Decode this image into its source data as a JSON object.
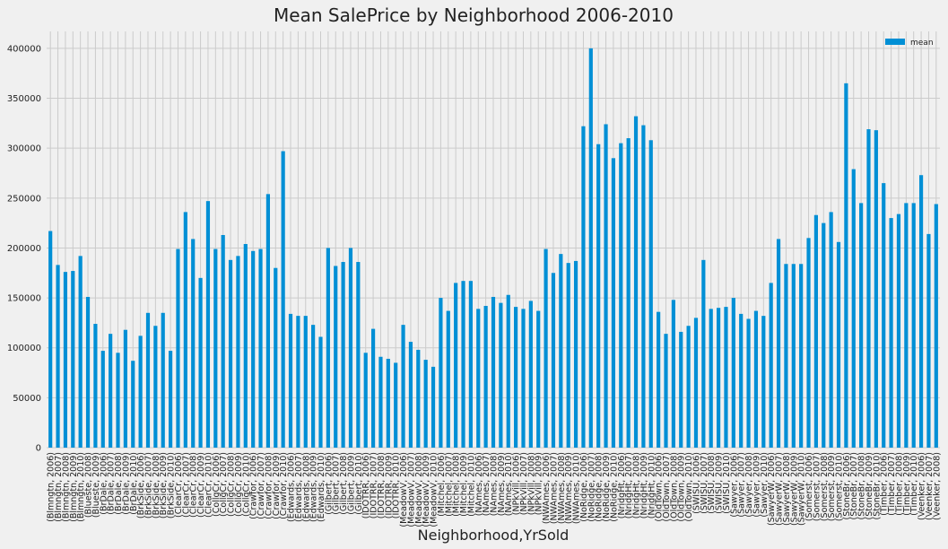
{
  "chart_data": {
    "type": "bar",
    "title": "Mean SalePrice by Neighborhood 2006-2010",
    "x_label": "Neighborhood,YrSold",
    "categories": [
      "(Blmngtn, 2006)",
      "(Blmngtn, 2007)",
      "(Blmngtn, 2008)",
      "(Blmngtn, 2009)",
      "(Blmngtn, 2010)",
      "(Blueste, 2008)",
      "(Blueste, 2009)",
      "(BrDale, 2006)",
      "(BrDale, 2007)",
      "(BrDale, 2008)",
      "(BrDale, 2009)",
      "(BrDale, 2010)",
      "(BrkSide, 2006)",
      "(BrkSide, 2007)",
      "(BrkSide, 2008)",
      "(BrkSide, 2009)",
      "(BrkSide, 2010)",
      "(ClearCr, 2006)",
      "(ClearCr, 2007)",
      "(ClearCr, 2008)",
      "(ClearCr, 2009)",
      "(ClearCr, 2010)",
      "(CollgCr, 2006)",
      "(CollgCr, 2007)",
      "(CollgCr, 2008)",
      "(CollgCr, 2009)",
      "(CollgCr, 2010)",
      "(Crawfor, 2006)",
      "(Crawfor, 2007)",
      "(Crawfor, 2008)",
      "(Crawfor, 2009)",
      "(Crawfor, 2010)",
      "(Edwards, 2006)",
      "(Edwards, 2007)",
      "(Edwards, 2008)",
      "(Edwards, 2009)",
      "(Edwards, 2010)",
      "(Gilbert, 2006)",
      "(Gilbert, 2007)",
      "(Gilbert, 2008)",
      "(Gilbert, 2009)",
      "(Gilbert, 2010)",
      "(IDOTRR, 2006)",
      "(IDOTRR, 2007)",
      "(IDOTRR, 2008)",
      "(IDOTRR, 2009)",
      "(IDOTRR, 2010)",
      "(MeadowV, 2006)",
      "(MeadowV, 2007)",
      "(MeadowV, 2008)",
      "(MeadowV, 2009)",
      "(MeadowV, 2010)",
      "(Mitchel, 2006)",
      "(Mitchel, 2007)",
      "(Mitchel, 2008)",
      "(Mitchel, 2009)",
      "(Mitchel, 2010)",
      "(NAmes, 2006)",
      "(NAmes, 2007)",
      "(NAmes, 2008)",
      "(NAmes, 2009)",
      "(NAmes, 2010)",
      "(NPkVill, 2006)",
      "(NPkVill, 2007)",
      "(NPkVill, 2008)",
      "(NPkVill, 2009)",
      "(NWAmes, 2006)",
      "(NWAmes, 2007)",
      "(NWAmes, 2008)",
      "(NWAmes, 2009)",
      "(NWAmes, 2010)",
      "(NoRidge, 2006)",
      "(NoRidge, 2007)",
      "(NoRidge, 2008)",
      "(NoRidge, 2009)",
      "(NoRidge, 2010)",
      "(NridgHt, 2006)",
      "(NridgHt, 2007)",
      "(NridgHt, 2008)",
      "(NridgHt, 2009)",
      "(NridgHt, 2010)",
      "(OldTown, 2006)",
      "(OldTown, 2007)",
      "(OldTown, 2008)",
      "(OldTown, 2009)",
      "(OldTown, 2010)",
      "(SWISU, 2006)",
      "(SWISU, 2007)",
      "(SWISU, 2008)",
      "(SWISU, 2009)",
      "(SWISU, 2010)",
      "(Sawyer, 2006)",
      "(Sawyer, 2007)",
      "(Sawyer, 2008)",
      "(Sawyer, 2009)",
      "(Sawyer, 2010)",
      "(SawyerW, 2006)",
      "(SawyerW, 2007)",
      "(SawyerW, 2008)",
      "(SawyerW, 2009)",
      "(SawyerW, 2010)",
      "(Somerst, 2006)",
      "(Somerst, 2007)",
      "(Somerst, 2008)",
      "(Somerst, 2009)",
      "(Somerst, 2010)",
      "(StoneBr, 2006)",
      "(StoneBr, 2007)",
      "(StoneBr, 2008)",
      "(StoneBr, 2009)",
      "(StoneBr, 2010)",
      "(Timber, 2006)",
      "(Timber, 2007)",
      "(Timber, 2008)",
      "(Timber, 2009)",
      "(Timber, 2010)",
      "(Veenker, 2006)",
      "(Veenker, 2007)",
      "(Veenker, 2008)"
    ],
    "series": [
      {
        "name": "mean",
        "color": "#008fd5",
        "values": [
          217000,
          183000,
          176000,
          177000,
          192000,
          151000,
          124000,
          97000,
          114000,
          95000,
          118000,
          87000,
          112000,
          135000,
          122000,
          135000,
          97000,
          199000,
          236000,
          209000,
          170000,
          247000,
          199000,
          213000,
          188000,
          192000,
          204000,
          197000,
          199000,
          254000,
          180000,
          297000,
          134000,
          132000,
          132000,
          123000,
          111000,
          200000,
          182000,
          186000,
          200000,
          186000,
          95000,
          119000,
          91000,
          89000,
          85000,
          123000,
          106000,
          98000,
          88000,
          81000,
          150000,
          137000,
          165000,
          167000,
          167000,
          139000,
          142000,
          151000,
          145000,
          153000,
          141000,
          139000,
          147000,
          137000,
          199000,
          175000,
          194000,
          185000,
          187000,
          322000,
          400000,
          304000,
          324000,
          290000,
          305000,
          310000,
          332000,
          323000,
          308000,
          136000,
          114000,
          148000,
          116000,
          122000,
          130000,
          188000,
          139000,
          140000,
          141000,
          150000,
          134000,
          129000,
          137000,
          132000,
          165000,
          209000,
          184000,
          184000,
          184000,
          210000,
          233000,
          225000,
          236000,
          206000,
          365000,
          279000,
          245000,
          319000,
          318000,
          265000,
          230000,
          234000,
          245000,
          245000,
          273000,
          214000,
          244000
        ]
      }
    ],
    "ylim": [
      0,
      417000
    ],
    "yticks": [
      0,
      50000,
      100000,
      150000,
      200000,
      250000,
      300000,
      350000,
      400000
    ],
    "grid": true,
    "legend": "upper right"
  }
}
